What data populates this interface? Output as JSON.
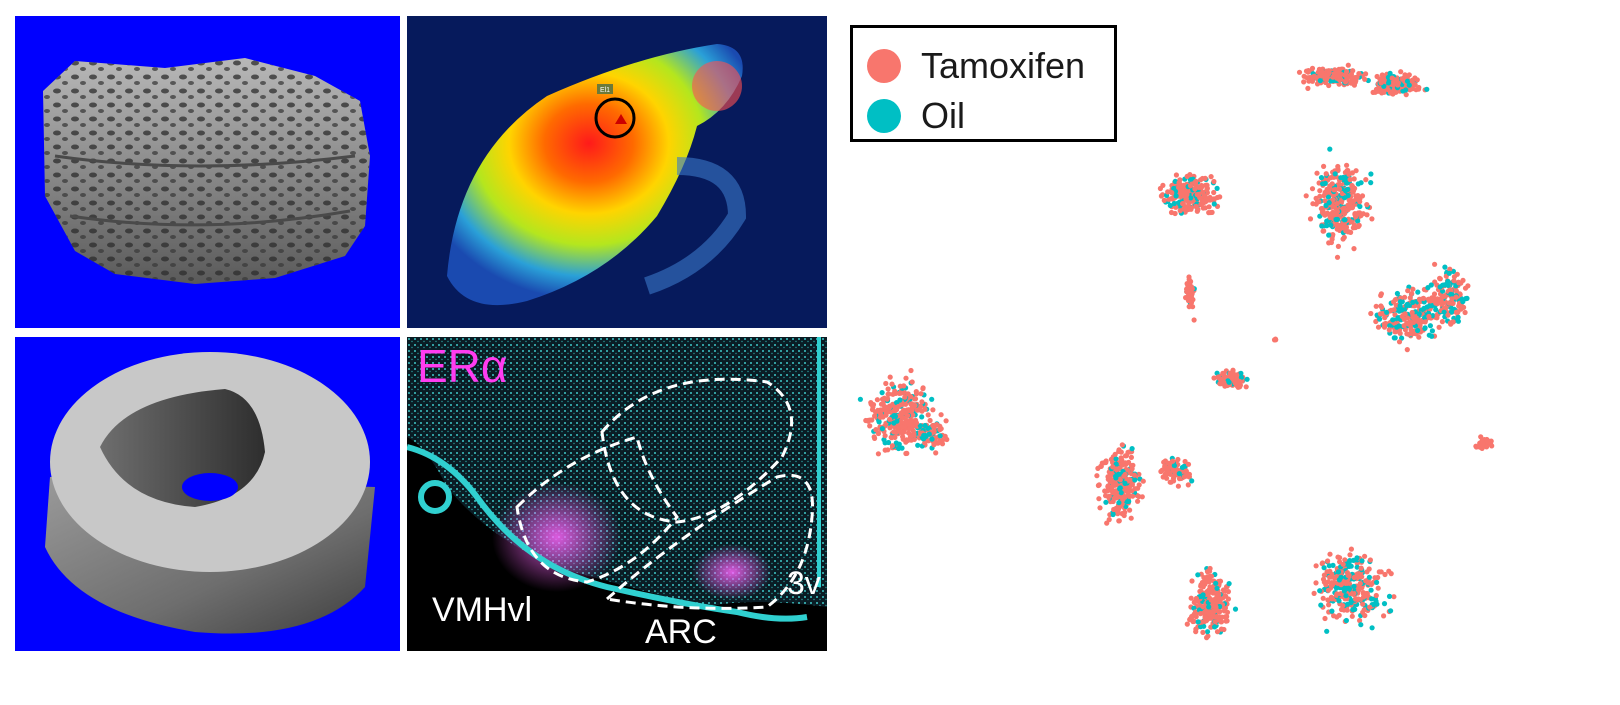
{
  "panels": {
    "bone": {
      "background": "#0000ff"
    },
    "thermal": {
      "background": "#061a5c",
      "roi_tag": "El1"
    },
    "cortical": {
      "background": "#0000ff"
    },
    "brain": {
      "marker_label": "ERα",
      "region_vmh": "VMHvl",
      "region_arc": "ARC",
      "region_3v": "3v"
    }
  },
  "umap": {
    "legend": [
      {
        "label": "Tamoxifen",
        "color": "#f8766d"
      },
      {
        "label": "Oil",
        "color": "#00bfc4"
      }
    ]
  }
}
